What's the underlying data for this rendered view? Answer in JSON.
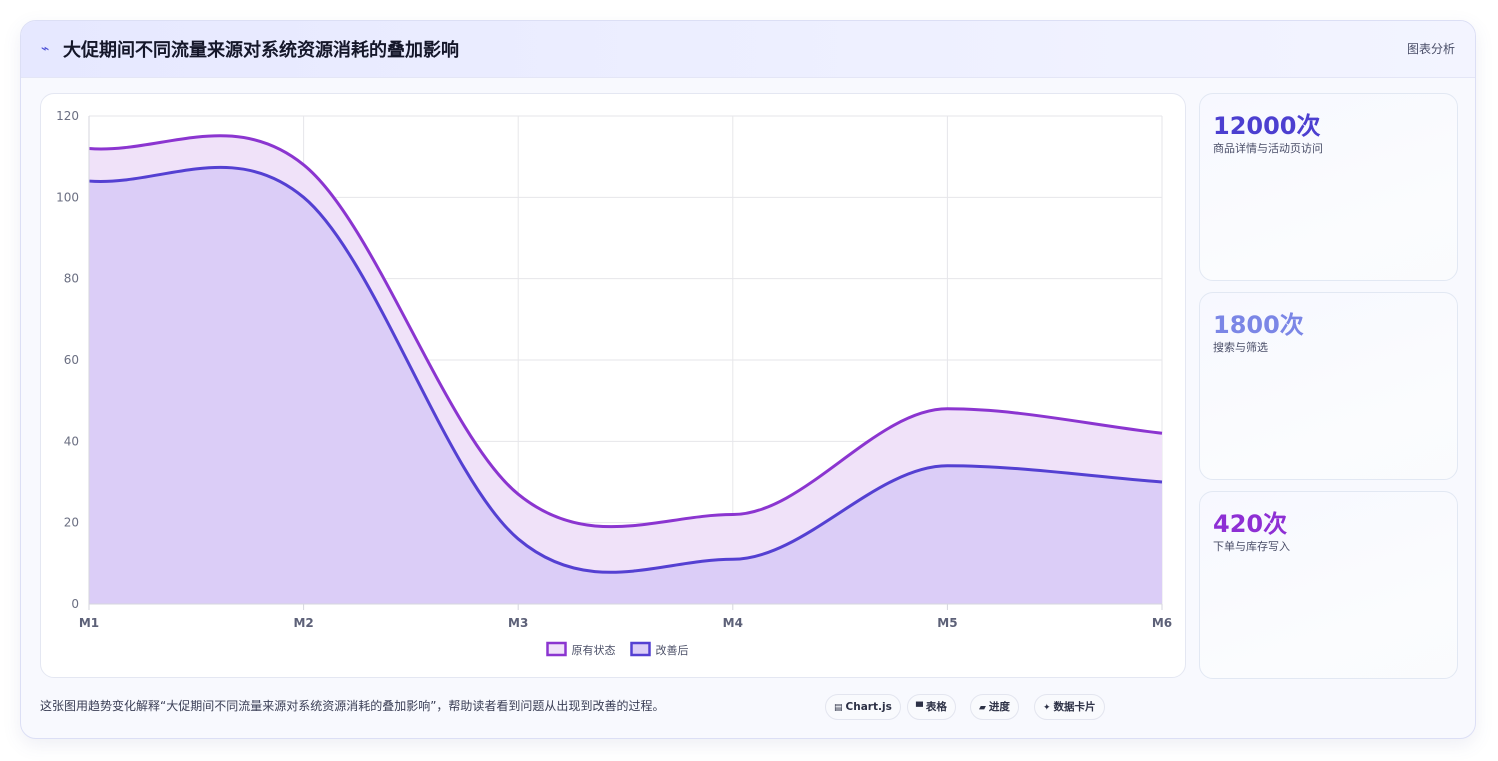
{
  "header": {
    "icon": "activity-icon",
    "title": "大促期间不同流量来源对系统资源消耗的叠加影响",
    "tag": "图表分析"
  },
  "chart_data": {
    "type": "area",
    "title": "",
    "xlabel": "",
    "ylabel": "",
    "x": [
      "M1",
      "M2",
      "M3",
      "M4",
      "M5",
      "M6"
    ],
    "ylim": [
      0,
      120
    ],
    "yticks": [
      0,
      20,
      40,
      60,
      80,
      100,
      120
    ],
    "grid": true,
    "smooth": true,
    "legend_position": "bottom",
    "series": [
      {
        "name": "原有状态",
        "values": [
          112,
          108,
          27,
          22,
          48,
          42
        ],
        "color": "#8b35d0",
        "fill": "#f0e2f9"
      },
      {
        "name": "改善后",
        "values": [
          104,
          100,
          16,
          11,
          34,
          30
        ],
        "color": "#5440d2",
        "fill": "#dbcdf7"
      }
    ]
  },
  "stats": [
    {
      "value": "12000次",
      "label": "商品详情与活动页访问",
      "color": "#4c3fd0"
    },
    {
      "value": "1800次",
      "label": "搜索与筛选",
      "color": "#7b86e6"
    },
    {
      "value": "420次",
      "label": "下单与库存写入",
      "color": "#8e2fd4"
    }
  ],
  "caption": "这张图用趋势变化解释“大促期间不同流量来源对系统资源消耗的叠加影响”，帮助读者看到问题从出现到改善的过程。",
  "chips": [
    {
      "icon": "chart-icon",
      "label": "Chart.js"
    },
    {
      "icon": "table-icon",
      "label": "表格"
    },
    {
      "icon": "progress-icon",
      "label": "进度"
    },
    {
      "icon": "data-card-icon",
      "label": "数据卡片"
    }
  ]
}
